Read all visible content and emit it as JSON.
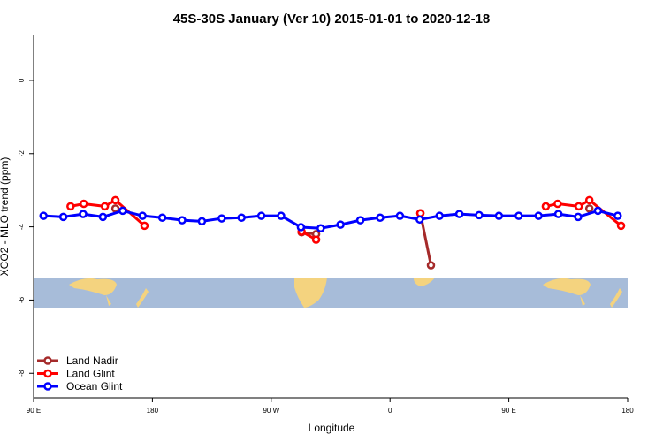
{
  "chart_data": {
    "type": "line",
    "title": "45S-30S January (Ver 10)   2015-01-01 to 2020-12-18",
    "xlabel": "Longitude",
    "ylabel": "XCO2 - MLO trend (ppm)",
    "xlim": [
      90,
      540
    ],
    "xticks": [
      {
        "value": 90,
        "label": "90 E"
      },
      {
        "value": 180,
        "label": "180"
      },
      {
        "value": 270,
        "label": "90 W"
      },
      {
        "value": 360,
        "label": "0"
      },
      {
        "value": 450,
        "label": "90 E"
      },
      {
        "value": 540,
        "label": "180"
      }
    ],
    "ylim": [
      -8.67,
      1.23
    ],
    "yticks": [
      0,
      -2,
      -4,
      -6,
      -8
    ],
    "legend": "bottom-left",
    "series": [
      {
        "name": "Land Nadir",
        "color": "#a52a2a",
        "x": [
          152,
          293,
          304,
          383,
          391,
          511
        ],
        "values": [
          -3.5,
          -4.15,
          -4.2,
          -3.63,
          -5.05,
          -3.5
        ]
      },
      {
        "name": "Land Glint",
        "color": "#ff0000",
        "x": [
          118,
          128,
          144,
          152,
          174,
          293,
          304,
          383,
          478,
          487,
          503,
          511,
          535
        ],
        "values": [
          -3.44,
          -3.37,
          -3.44,
          -3.27,
          -3.97,
          -4.13,
          -4.35,
          -3.63,
          -3.44,
          -3.37,
          -3.44,
          -3.27,
          -3.97
        ]
      },
      {
        "name": "Ocean Glint",
        "color": "#0000ff",
        "x": [
          97.5,
          112.5,
          127.5,
          142.5,
          157.5,
          172.5,
          187.5,
          202.5,
          217.5,
          232.5,
          247.5,
          262.5,
          277.5,
          292.5,
          307.5,
          322.5,
          337.5,
          352.5,
          367.5,
          382.5,
          397.5,
          412.5,
          427.5,
          442.5,
          457.5,
          472.5,
          487.5,
          502.5,
          517.5,
          532.5
        ],
        "values": [
          -3.7,
          -3.73,
          -3.65,
          -3.73,
          -3.56,
          -3.7,
          -3.75,
          -3.82,
          -3.85,
          -3.77,
          -3.75,
          -3.7,
          -3.7,
          -4.01,
          -4.04,
          -3.94,
          -3.82,
          -3.75,
          -3.7,
          -3.8,
          -3.7,
          -3.65,
          -3.68,
          -3.7,
          -3.7,
          -3.7,
          -3.65,
          -3.73,
          -3.56,
          -3.7
        ]
      }
    ]
  }
}
